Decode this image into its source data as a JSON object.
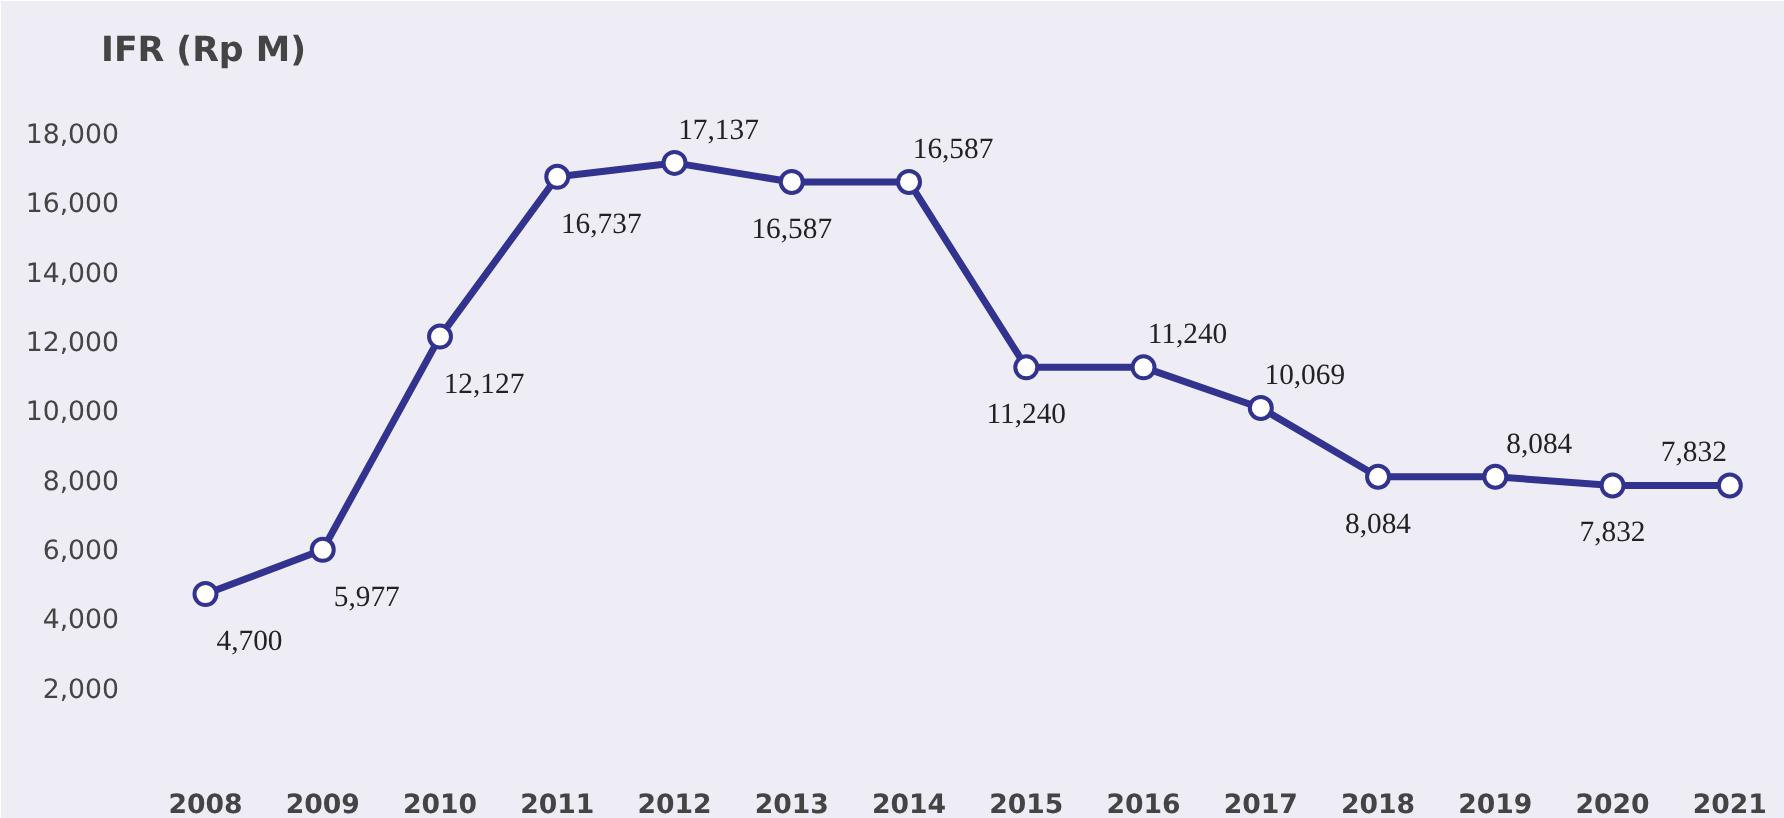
{
  "chart_data": {
    "type": "line",
    "title": "IFR (Rp M)",
    "categories": [
      "2008",
      "2009",
      "2010",
      "2011",
      "2012",
      "2013",
      "2014",
      "2015",
      "2016",
      "2017",
      "2018",
      "2019",
      "2020",
      "2021"
    ],
    "series": [
      {
        "color": "#32328f",
        "values": [
          4700,
          5977,
          12127,
          16737,
          17137,
          16587,
          16587,
          11240,
          11240,
          10069,
          8084,
          8084,
          7832,
          7832
        ]
      }
    ],
    "ylim": [
      0,
      19500
    ],
    "yticks": [
      {
        "value": 2000,
        "label": "2,000"
      },
      {
        "value": 4000,
        "label": "4,000"
      },
      {
        "value": 6000,
        "label": "6,000"
      },
      {
        "value": 8000,
        "label": "8,000"
      },
      {
        "value": 10000,
        "label": "10,000"
      },
      {
        "value": 12000,
        "label": "12,000"
      },
      {
        "value": 14000,
        "label": "14,000"
      },
      {
        "value": 16000,
        "label": "16,000"
      },
      {
        "value": 18000,
        "label": "18,000"
      }
    ],
    "grid": false,
    "marker": "circle",
    "line_style": "solid",
    "value_labels": [
      "4,700",
      "5,977",
      "12,127",
      "16,737",
      "17,137",
      "16,587",
      "16,587",
      "11,240",
      "11,240",
      "10,069",
      "8,084",
      "8,084",
      "7,832",
      "7,832"
    ]
  }
}
